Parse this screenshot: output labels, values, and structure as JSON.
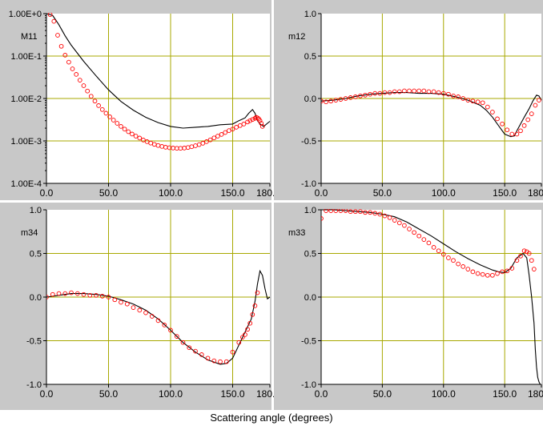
{
  "figure": {
    "xlabel": "Scattering angle (degrees)",
    "colors": {
      "panel_bg": "#c8c8c8",
      "plot_bg": "#ffffff",
      "grid": "#a8a800",
      "model": "#000000",
      "measured": "#ff0000"
    }
  },
  "chart_data": [
    {
      "type": "line",
      "panel": "top-left",
      "label": "M11",
      "yscale": "log",
      "xlim": [
        0,
        180
      ],
      "ylim": [
        0.0001,
        1
      ],
      "xticks": [
        "0.0",
        "50.0",
        "100.0",
        "150.0",
        "180.0"
      ],
      "yticks": [
        "1.00E+0",
        "1.00E-1",
        "1.00E-2",
        "1.00E-3",
        "1.00E-4"
      ],
      "grid": true,
      "series": [
        {
          "style": "line",
          "x": [
            0,
            5,
            10,
            15,
            20,
            30,
            40,
            50,
            60,
            70,
            80,
            90,
            100,
            110,
            120,
            130,
            140,
            150,
            155,
            160,
            163,
            166,
            168,
            170,
            172,
            175,
            178,
            180
          ],
          "y": [
            1,
            0.9,
            0.55,
            0.3,
            0.18,
            0.075,
            0.034,
            0.016,
            0.0085,
            0.0053,
            0.0036,
            0.0027,
            0.0022,
            0.002,
            0.0021,
            0.0022,
            0.0024,
            0.0025,
            0.003,
            0.0035,
            0.0045,
            0.0055,
            0.0045,
            0.003,
            0.0025,
            0.0022,
            0.0026,
            0.0029
          ]
        },
        {
          "style": "markers",
          "x": [
            3,
            6,
            9,
            12,
            15,
            18,
            21,
            24,
            27,
            30,
            33,
            36,
            39,
            42,
            45,
            48,
            51,
            54,
            57,
            60,
            63,
            66,
            69,
            72,
            75,
            78,
            81,
            84,
            87,
            90,
            93,
            96,
            99,
            102,
            105,
            108,
            111,
            114,
            117,
            120,
            123,
            126,
            129,
            132,
            135,
            138,
            141,
            144,
            147,
            150,
            153,
            156,
            159,
            162,
            164,
            166,
            168,
            169,
            170,
            171,
            172,
            173,
            174
          ],
          "y": [
            0.95,
            0.66,
            0.31,
            0.17,
            0.105,
            0.072,
            0.05,
            0.037,
            0.027,
            0.02,
            0.015,
            0.0113,
            0.0087,
            0.0068,
            0.0055,
            0.0045,
            0.0037,
            0.0031,
            0.0026,
            0.0022,
            0.0019,
            0.00165,
            0.00145,
            0.0013,
            0.00117,
            0.00105,
            0.00096,
            0.00089,
            0.00083,
            0.00078,
            0.00074,
            0.00071,
            0.00069,
            0.00068,
            0.00067,
            0.00067,
            0.00068,
            0.0007,
            0.00073,
            0.00077,
            0.00082,
            0.00088,
            0.00096,
            0.00106,
            0.00118,
            0.0013,
            0.00142,
            0.00158,
            0.00175,
            0.0019,
            0.0021,
            0.0023,
            0.0025,
            0.0028,
            0.003,
            0.0032,
            0.0034,
            0.0036,
            0.0035,
            0.0033,
            0.003,
            0.0026,
            0.0022
          ]
        }
      ]
    },
    {
      "type": "line",
      "panel": "top-right",
      "label": "m12",
      "yscale": "linear",
      "xlim": [
        0,
        180
      ],
      "ylim": [
        -1,
        1
      ],
      "xticks": [
        "0.0",
        "50.0",
        "100.0",
        "150.0",
        "180.0"
      ],
      "yticks": [
        "1.0",
        "0.5",
        "0.0",
        "-0.5",
        "-1.0"
      ],
      "grid": true,
      "series": [
        {
          "style": "line",
          "x": [
            0,
            10,
            20,
            30,
            40,
            50,
            60,
            70,
            80,
            90,
            100,
            110,
            120,
            130,
            135,
            140,
            145,
            150,
            155,
            158,
            160,
            163,
            166,
            170,
            173,
            176,
            178,
            180
          ],
          "y": [
            -0.03,
            -0.02,
            0.0,
            0.03,
            0.05,
            0.06,
            0.07,
            0.07,
            0.06,
            0.06,
            0.05,
            0.02,
            -0.02,
            -0.08,
            -0.14,
            -0.22,
            -0.32,
            -0.42,
            -0.45,
            -0.44,
            -0.38,
            -0.3,
            -0.22,
            -0.12,
            -0.03,
            0.04,
            0.03,
            -0.02
          ]
        },
        {
          "style": "markers",
          "x": [
            0,
            4,
            8,
            12,
            16,
            20,
            24,
            28,
            32,
            36,
            40,
            44,
            48,
            52,
            56,
            60,
            64,
            68,
            72,
            76,
            80,
            84,
            88,
            92,
            96,
            100,
            104,
            108,
            112,
            116,
            120,
            124,
            128,
            132,
            136,
            140,
            144,
            148,
            152,
            156,
            160,
            163,
            166,
            169,
            172,
            175,
            178
          ],
          "y": [
            -0.03,
            -0.04,
            -0.03,
            -0.02,
            -0.01,
            0.0,
            0.01,
            0.02,
            0.03,
            0.04,
            0.05,
            0.06,
            0.06,
            0.07,
            0.07,
            0.08,
            0.08,
            0.09,
            0.09,
            0.09,
            0.09,
            0.09,
            0.08,
            0.08,
            0.07,
            0.06,
            0.05,
            0.03,
            0.02,
            0.0,
            -0.02,
            -0.03,
            -0.04,
            -0.05,
            -0.1,
            -0.16,
            -0.24,
            -0.3,
            -0.37,
            -0.42,
            -0.42,
            -0.38,
            -0.32,
            -0.25,
            -0.18,
            -0.08,
            -0.02
          ]
        }
      ]
    },
    {
      "type": "line",
      "panel": "bottom-left",
      "label": "m34",
      "yscale": "linear",
      "xlim": [
        0,
        180
      ],
      "ylim": [
        -1,
        1
      ],
      "xticks": [
        "0.0",
        "50.0",
        "100.0",
        "150.0",
        "180.0"
      ],
      "yticks": [
        "1.0",
        "0.5",
        "0.0",
        "-0.5",
        "-1.0"
      ],
      "grid": true,
      "series": [
        {
          "style": "line",
          "x": [
            0,
            10,
            20,
            30,
            40,
            50,
            60,
            70,
            80,
            90,
            100,
            110,
            120,
            130,
            140,
            145,
            150,
            155,
            160,
            165,
            168,
            170,
            172,
            174,
            176,
            178,
            180
          ],
          "y": [
            0.0,
            0.02,
            0.04,
            0.04,
            0.03,
            0.01,
            -0.03,
            -0.08,
            -0.15,
            -0.25,
            -0.38,
            -0.52,
            -0.63,
            -0.72,
            -0.77,
            -0.76,
            -0.7,
            -0.55,
            -0.4,
            -0.25,
            -0.05,
            0.15,
            0.3,
            0.25,
            0.1,
            -0.02,
            0.0
          ]
        },
        {
          "style": "markers",
          "x": [
            0,
            5,
            10,
            15,
            20,
            25,
            30,
            35,
            40,
            45,
            50,
            55,
            60,
            65,
            70,
            75,
            80,
            85,
            90,
            95,
            100,
            105,
            110,
            115,
            120,
            125,
            130,
            135,
            140,
            145,
            150,
            155,
            158,
            160,
            162,
            164,
            166,
            168,
            170
          ],
          "y": [
            0.0,
            0.03,
            0.04,
            0.04,
            0.05,
            0.04,
            0.03,
            0.02,
            0.02,
            0.01,
            0.0,
            -0.03,
            -0.06,
            -0.08,
            -0.12,
            -0.15,
            -0.18,
            -0.22,
            -0.27,
            -0.32,
            -0.38,
            -0.45,
            -0.52,
            -0.58,
            -0.62,
            -0.66,
            -0.7,
            -0.73,
            -0.74,
            -0.74,
            -0.63,
            -0.52,
            -0.46,
            -0.43,
            -0.37,
            -0.3,
            -0.2,
            -0.1,
            0.05
          ]
        }
      ]
    },
    {
      "type": "line",
      "panel": "bottom-right",
      "label": "m33",
      "yscale": "linear",
      "xlim": [
        0,
        180
      ],
      "ylim": [
        -1,
        1
      ],
      "xticks": [
        "0.0",
        "50.0",
        "100.0",
        "150.0",
        "180.0"
      ],
      "yticks": [
        "1.0",
        "0.5",
        "0.0",
        "-0.5",
        "-1.0"
      ],
      "grid": true,
      "series": [
        {
          "style": "line",
          "x": [
            0,
            10,
            20,
            30,
            40,
            50,
            60,
            70,
            80,
            90,
            100,
            110,
            120,
            130,
            140,
            145,
            150,
            155,
            160,
            165,
            168,
            170,
            172,
            174,
            175,
            176,
            177,
            178,
            179,
            180
          ],
          "y": [
            1.0,
            1.0,
            0.99,
            0.98,
            0.97,
            0.95,
            0.92,
            0.86,
            0.78,
            0.7,
            0.61,
            0.52,
            0.44,
            0.37,
            0.31,
            0.29,
            0.28,
            0.33,
            0.45,
            0.5,
            0.45,
            0.25,
            0.0,
            -0.3,
            -0.6,
            -0.8,
            -0.92,
            -0.97,
            -1.0,
            -1.0
          ]
        },
        {
          "style": "markers",
          "x": [
            0,
            4,
            8,
            12,
            16,
            20,
            24,
            28,
            32,
            36,
            40,
            44,
            48,
            52,
            56,
            60,
            64,
            68,
            72,
            76,
            80,
            84,
            88,
            92,
            96,
            100,
            104,
            108,
            112,
            116,
            120,
            124,
            128,
            132,
            136,
            140,
            144,
            148,
            152,
            156,
            160,
            163,
            166,
            168,
            170,
            172,
            174
          ],
          "y": [
            0.9,
            0.99,
            0.99,
            0.99,
            0.99,
            0.99,
            0.98,
            0.98,
            0.98,
            0.97,
            0.97,
            0.96,
            0.95,
            0.93,
            0.91,
            0.88,
            0.85,
            0.82,
            0.78,
            0.74,
            0.7,
            0.66,
            0.62,
            0.57,
            0.53,
            0.49,
            0.45,
            0.42,
            0.38,
            0.35,
            0.32,
            0.29,
            0.27,
            0.26,
            0.25,
            0.25,
            0.27,
            0.29,
            0.3,
            0.33,
            0.42,
            0.47,
            0.53,
            0.52,
            0.5,
            0.42,
            0.32
          ]
        }
      ]
    }
  ]
}
